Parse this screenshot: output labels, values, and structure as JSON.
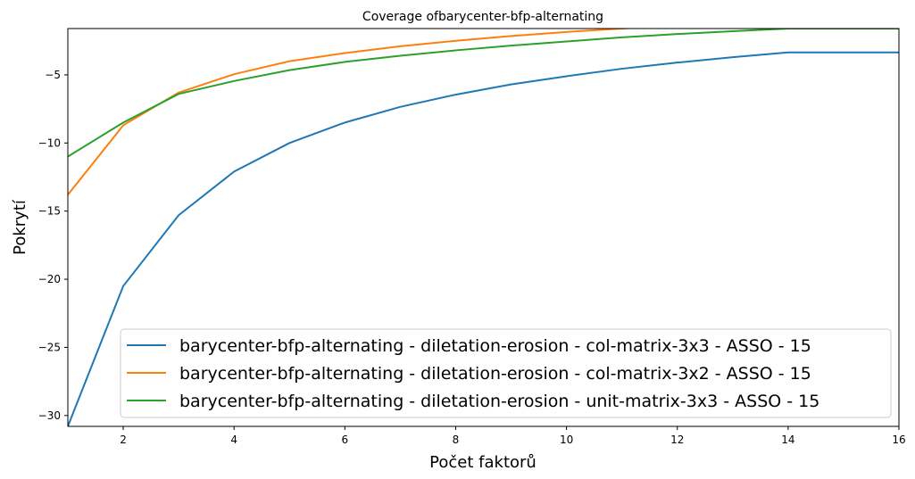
{
  "chart_data": {
    "type": "line",
    "title": "Coverage ofbarycenter-bfp-alternating",
    "xlabel": "Počet faktorů",
    "ylabel": "Pokrytí",
    "xlim": [
      1,
      16
    ],
    "ylim": [
      -30.8,
      -1.6
    ],
    "xticks": [
      2,
      4,
      6,
      8,
      10,
      12,
      14,
      16
    ],
    "yticks": [
      -30,
      -25,
      -20,
      -15,
      -10,
      -5
    ],
    "ytick_labels": [
      "−30",
      "−25",
      "−20",
      "−15",
      "−10",
      "−5"
    ],
    "grid": false,
    "legend_position": "lower-right",
    "x": [
      1,
      2,
      3,
      4,
      5,
      6,
      7,
      8,
      9,
      10,
      11,
      12,
      13,
      14,
      15,
      16
    ],
    "series": [
      {
        "name": "barycenter-bfp-alternating - diletation-erosion - col-matrix-3x3 - ASSO - 15",
        "color": "#1f77b4",
        "values": [
          -30.8,
          -20.5,
          -15.3,
          -12.1,
          -10.0,
          -8.5,
          -7.35,
          -6.45,
          -5.7,
          -5.1,
          -4.55,
          -4.1,
          -3.7,
          -3.35,
          -3.35,
          -3.35
        ]
      },
      {
        "name": "barycenter-bfp-alternating - diletation-erosion - col-matrix-3x2 - ASSO - 15",
        "color": "#ff7f0e",
        "values": [
          -13.8,
          -8.7,
          -6.3,
          -4.95,
          -4.0,
          -3.4,
          -2.9,
          -2.5,
          -2.15,
          -1.85,
          -1.6,
          -1.38,
          -1.2,
          -1.1,
          -1.1,
          -1.1
        ]
      },
      {
        "name": "barycenter-bfp-alternating - diletation-erosion - unit-matrix-3x3 - ASSO - 15",
        "color": "#2ca02c",
        "values": [
          -11.0,
          -8.5,
          -6.4,
          -5.45,
          -4.65,
          -4.05,
          -3.6,
          -3.2,
          -2.85,
          -2.55,
          -2.25,
          -2.0,
          -1.8,
          -1.6,
          -1.6,
          -1.6
        ]
      }
    ]
  }
}
